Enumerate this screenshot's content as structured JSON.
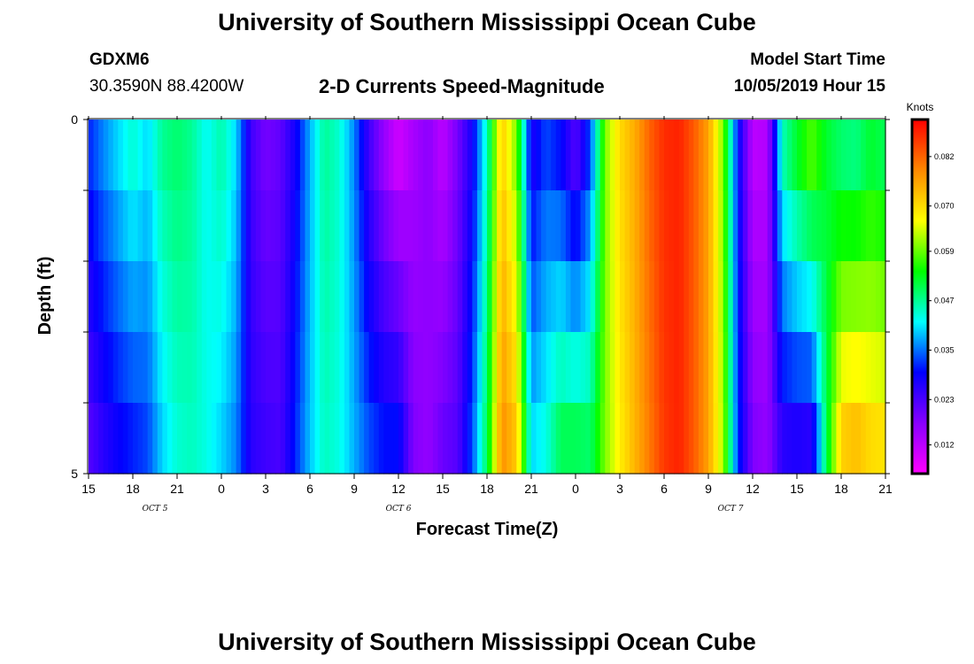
{
  "header": {
    "title": "University of Southern Mississippi Ocean Cube",
    "station": "GDXM6",
    "coords": "30.3590N 88.4200W",
    "subtitle": "2-D Currents Speed-Magnitude",
    "model_label": "Model Start Time",
    "model_time": "10/05/2019 Hour 15"
  },
  "footer": {
    "title": "University of Southern Mississippi Ocean Cube"
  },
  "chart_data": {
    "type": "heatmap",
    "xlabel": "Forecast Time(Z)",
    "ylabel": "Depth (ft)",
    "y_ticks": [
      "0",
      "5"
    ],
    "ylim": [
      0,
      5
    ],
    "x_ticks": [
      "15",
      "18",
      "21",
      "0",
      "3",
      "6",
      "9",
      "12",
      "15",
      "18",
      "21",
      "0",
      "3",
      "6",
      "9",
      "12",
      "15",
      "18",
      "21"
    ],
    "day_labels": [
      {
        "text": "OCT 5",
        "hour_offset": 4.5
      },
      {
        "text": "OCT 6",
        "hour_offset": 21
      },
      {
        "text": "OCT 7",
        "hour_offset": 43.5
      }
    ],
    "forecast_hours": 54,
    "depth_layers": 5,
    "colorbar": {
      "unit_label": "Knots",
      "ticks": [
        "0.082",
        "0.070",
        "0.059",
        "0.047",
        "0.035",
        "0.023",
        "0.012"
      ],
      "tick_values": [
        0.082,
        0.07,
        0.059,
        0.047,
        0.035,
        0.023,
        0.012
      ],
      "range": [
        0.005,
        0.091
      ],
      "colors": [
        "#ff00ff",
        "#8800ff",
        "#0000ff",
        "#00ffff",
        "#00ff00",
        "#ffff00",
        "#ff8800",
        "#ff0000"
      ]
    },
    "profile": [
      {
        "hour": 0,
        "surface": 0.031,
        "bottom": 0.022
      },
      {
        "hour": 1,
        "surface": 0.036,
        "bottom": 0.026
      },
      {
        "hour": 2,
        "surface": 0.04,
        "bottom": 0.029
      },
      {
        "hour": 3,
        "surface": 0.044,
        "bottom": 0.031
      },
      {
        "hour": 4,
        "surface": 0.04,
        "bottom": 0.033
      },
      {
        "hour": 5,
        "surface": 0.047,
        "bottom": 0.04
      },
      {
        "hour": 6,
        "surface": 0.049,
        "bottom": 0.044
      },
      {
        "hour": 7,
        "surface": 0.047,
        "bottom": 0.045
      },
      {
        "hour": 8,
        "surface": 0.042,
        "bottom": 0.043
      },
      {
        "hour": 9,
        "surface": 0.046,
        "bottom": 0.04
      },
      {
        "hour": 10,
        "surface": 0.04,
        "bottom": 0.036
      },
      {
        "hour": 11,
        "surface": 0.024,
        "bottom": 0.026
      },
      {
        "hour": 12,
        "surface": 0.019,
        "bottom": 0.024
      },
      {
        "hour": 13,
        "surface": 0.021,
        "bottom": 0.023
      },
      {
        "hour": 14,
        "surface": 0.028,
        "bottom": 0.031
      },
      {
        "hour": 15,
        "surface": 0.038,
        "bottom": 0.039
      },
      {
        "hour": 16,
        "surface": 0.047,
        "bottom": 0.045
      },
      {
        "hour": 17,
        "surface": 0.044,
        "bottom": 0.043
      },
      {
        "hour": 18,
        "surface": 0.036,
        "bottom": 0.038
      },
      {
        "hour": 19,
        "surface": 0.024,
        "bottom": 0.033
      },
      {
        "hour": 20,
        "surface": 0.016,
        "bottom": 0.03
      },
      {
        "hour": 21,
        "surface": 0.01,
        "bottom": 0.03
      },
      {
        "hour": 22,
        "surface": 0.014,
        "bottom": 0.018
      },
      {
        "hour": 23,
        "surface": 0.017,
        "bottom": 0.016
      },
      {
        "hour": 24,
        "surface": 0.012,
        "bottom": 0.02
      },
      {
        "hour": 25,
        "surface": 0.019,
        "bottom": 0.022
      },
      {
        "hour": 26,
        "surface": 0.028,
        "bottom": 0.033
      },
      {
        "hour": 27,
        "surface": 0.045,
        "bottom": 0.05
      },
      {
        "hour": 28,
        "surface": 0.072,
        "bottom": 0.078
      },
      {
        "hour": 29,
        "surface": 0.06,
        "bottom": 0.072
      },
      {
        "hour": 30,
        "surface": 0.027,
        "bottom": 0.04
      },
      {
        "hour": 31,
        "surface": 0.033,
        "bottom": 0.043
      },
      {
        "hour": 32,
        "surface": 0.03,
        "bottom": 0.05
      },
      {
        "hour": 33,
        "surface": 0.022,
        "bottom": 0.05
      },
      {
        "hour": 34,
        "surface": 0.033,
        "bottom": 0.049
      },
      {
        "hour": 35,
        "surface": 0.06,
        "bottom": 0.06
      },
      {
        "hour": 36,
        "surface": 0.07,
        "bottom": 0.068
      },
      {
        "hour": 37,
        "surface": 0.075,
        "bottom": 0.074
      },
      {
        "hour": 38,
        "surface": 0.082,
        "bottom": 0.08
      },
      {
        "hour": 39,
        "surface": 0.087,
        "bottom": 0.086
      },
      {
        "hour": 40,
        "surface": 0.088,
        "bottom": 0.088
      },
      {
        "hour": 41,
        "surface": 0.083,
        "bottom": 0.083
      },
      {
        "hour": 42,
        "surface": 0.076,
        "bottom": 0.076
      },
      {
        "hour": 43,
        "surface": 0.06,
        "bottom": 0.062
      },
      {
        "hour": 44,
        "surface": 0.03,
        "bottom": 0.032
      },
      {
        "hour": 45,
        "surface": 0.012,
        "bottom": 0.018
      },
      {
        "hour": 46,
        "surface": 0.013,
        "bottom": 0.016
      },
      {
        "hour": 47,
        "surface": 0.045,
        "bottom": 0.026
      },
      {
        "hour": 48,
        "surface": 0.052,
        "bottom": 0.027
      },
      {
        "hour": 49,
        "surface": 0.058,
        "bottom": 0.026
      },
      {
        "hour": 50,
        "surface": 0.052,
        "bottom": 0.05
      },
      {
        "hour": 51,
        "surface": 0.049,
        "bottom": 0.071
      },
      {
        "hour": 52,
        "surface": 0.048,
        "bottom": 0.073
      },
      {
        "hour": 53,
        "surface": 0.052,
        "bottom": 0.07
      },
      {
        "hour": 54,
        "surface": 0.05,
        "bottom": 0.069
      }
    ]
  }
}
